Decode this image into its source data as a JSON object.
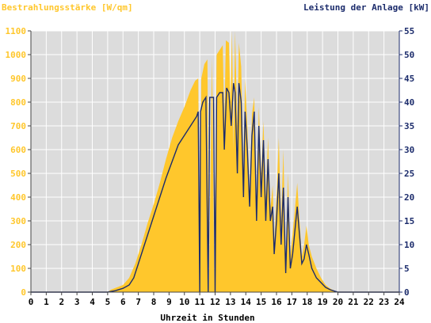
{
  "chart_data": {
    "type": "area",
    "left_axis_title": "Bestrahlungsstärke [W/qm]",
    "right_axis_title": "Leistung der Anlage [kW]",
    "xlabel": "Uhrzeit in Stunden",
    "xlim": [
      0,
      24
    ],
    "ylim_left": [
      0,
      1100
    ],
    "ylim_right": [
      0,
      55
    ],
    "x_ticks": [
      "0",
      "1",
      "2",
      "3",
      "4",
      "5",
      "6",
      "7",
      "8",
      "9",
      "10",
      "11",
      "12",
      "13",
      "14",
      "15",
      "16",
      "17",
      "18",
      "19",
      "20",
      "21",
      "22",
      "23",
      "24"
    ],
    "y_left_ticks": [
      "0",
      "100",
      "200",
      "300",
      "400",
      "500",
      "600",
      "700",
      "800",
      "900",
      "1000",
      "1100"
    ],
    "y_right_ticks": [
      "0",
      "5",
      "10",
      "15",
      "20",
      "25",
      "30",
      "35",
      "40",
      "45",
      "50",
      "55"
    ],
    "grid": true,
    "series": [
      {
        "name": "Bestrahlungsstärke",
        "axis": "left",
        "style": "area",
        "color": "#ffc72c",
        "points": [
          [
            0,
            0
          ],
          [
            5,
            0
          ],
          [
            5.2,
            10
          ],
          [
            5.6,
            20
          ],
          [
            6,
            30
          ],
          [
            6.4,
            60
          ],
          [
            6.8,
            120
          ],
          [
            7.2,
            200
          ],
          [
            7.6,
            290
          ],
          [
            8,
            370
          ],
          [
            8.4,
            460
          ],
          [
            8.8,
            560
          ],
          [
            9.2,
            650
          ],
          [
            9.6,
            720
          ],
          [
            10,
            780
          ],
          [
            10.4,
            850
          ],
          [
            10.7,
            890
          ],
          [
            10.9,
            900
          ],
          [
            11.0,
            20
          ],
          [
            11.1,
            900
          ],
          [
            11.3,
            960
          ],
          [
            11.5,
            980
          ],
          [
            11.6,
            20
          ],
          [
            11.8,
            990
          ],
          [
            11.95,
            20
          ],
          [
            12.1,
            1000
          ],
          [
            12.3,
            1020
          ],
          [
            12.5,
            1040
          ],
          [
            12.6,
            700
          ],
          [
            12.7,
            1060
          ],
          [
            12.9,
            1050
          ],
          [
            13.0,
            800
          ],
          [
            13.1,
            1100
          ],
          [
            13.2,
            600
          ],
          [
            13.3,
            1100
          ],
          [
            13.45,
            700
          ],
          [
            13.55,
            1050
          ],
          [
            13.7,
            950
          ],
          [
            13.85,
            500
          ],
          [
            13.95,
            900
          ],
          [
            14.1,
            700
          ],
          [
            14.25,
            400
          ],
          [
            14.4,
            750
          ],
          [
            14.55,
            820
          ],
          [
            14.7,
            350
          ],
          [
            14.85,
            780
          ],
          [
            15.0,
            500
          ],
          [
            15.15,
            720
          ],
          [
            15.3,
            400
          ],
          [
            15.45,
            650
          ],
          [
            15.6,
            350
          ],
          [
            15.75,
            450
          ],
          [
            15.85,
            200
          ],
          [
            16.0,
            400
          ],
          [
            16.15,
            650
          ],
          [
            16.3,
            300
          ],
          [
            16.45,
            600
          ],
          [
            16.6,
            100
          ],
          [
            16.75,
            500
          ],
          [
            16.9,
            150
          ],
          [
            17.05,
            250
          ],
          [
            17.2,
            350
          ],
          [
            17.35,
            460
          ],
          [
            17.5,
            300
          ],
          [
            17.65,
            150
          ],
          [
            17.8,
            200
          ],
          [
            17.95,
            280
          ],
          [
            18.1,
            200
          ],
          [
            18.3,
            150
          ],
          [
            18.6,
            100
          ],
          [
            18.9,
            60
          ],
          [
            19.2,
            30
          ],
          [
            19.5,
            15
          ],
          [
            19.8,
            5
          ],
          [
            20.0,
            0
          ],
          [
            24,
            0
          ]
        ]
      },
      {
        "name": "Leistung der Anlage",
        "axis": "right",
        "style": "line",
        "color": "#1c2c6c",
        "points": [
          [
            0,
            0
          ],
          [
            5,
            0
          ],
          [
            5.5,
            0.3
          ],
          [
            6,
            0.8
          ],
          [
            6.4,
            1.5
          ],
          [
            6.7,
            3
          ],
          [
            7,
            6
          ],
          [
            7.3,
            9
          ],
          [
            7.7,
            13
          ],
          [
            8,
            16
          ],
          [
            8.4,
            20
          ],
          [
            8.8,
            24
          ],
          [
            9.2,
            27.5
          ],
          [
            9.6,
            31
          ],
          [
            10,
            33
          ],
          [
            10.4,
            35
          ],
          [
            10.8,
            37
          ],
          [
            10.9,
            38
          ],
          [
            11.0,
            0
          ],
          [
            11.05,
            38
          ],
          [
            11.2,
            40
          ],
          [
            11.4,
            41
          ],
          [
            11.55,
            0
          ],
          [
            11.65,
            41
          ],
          [
            11.9,
            41
          ],
          [
            12.0,
            0
          ],
          [
            12.1,
            41
          ],
          [
            12.3,
            42
          ],
          [
            12.5,
            42
          ],
          [
            12.6,
            30
          ],
          [
            12.75,
            43
          ],
          [
            12.9,
            42
          ],
          [
            13.05,
            35
          ],
          [
            13.2,
            44
          ],
          [
            13.3,
            42
          ],
          [
            13.45,
            25
          ],
          [
            13.55,
            44
          ],
          [
            13.7,
            40
          ],
          [
            13.85,
            20
          ],
          [
            13.95,
            38
          ],
          [
            14.1,
            30
          ],
          [
            14.25,
            18
          ],
          [
            14.4,
            33
          ],
          [
            14.55,
            38
          ],
          [
            14.7,
            15
          ],
          [
            14.85,
            35
          ],
          [
            15.0,
            20
          ],
          [
            15.15,
            32
          ],
          [
            15.3,
            15
          ],
          [
            15.45,
            28
          ],
          [
            15.6,
            15
          ],
          [
            15.75,
            18
          ],
          [
            15.85,
            8
          ],
          [
            16.0,
            15
          ],
          [
            16.15,
            25
          ],
          [
            16.3,
            10
          ],
          [
            16.45,
            22
          ],
          [
            16.6,
            4
          ],
          [
            16.75,
            20
          ],
          [
            16.9,
            5
          ],
          [
            17.05,
            8
          ],
          [
            17.2,
            13
          ],
          [
            17.35,
            18
          ],
          [
            17.5,
            12
          ],
          [
            17.65,
            6
          ],
          [
            17.8,
            7
          ],
          [
            17.95,
            10
          ],
          [
            18.1,
            8
          ],
          [
            18.3,
            5
          ],
          [
            18.6,
            3
          ],
          [
            18.9,
            2
          ],
          [
            19.2,
            1
          ],
          [
            19.5,
            0.5
          ],
          [
            20.0,
            0
          ],
          [
            24,
            0
          ]
        ]
      }
    ]
  }
}
